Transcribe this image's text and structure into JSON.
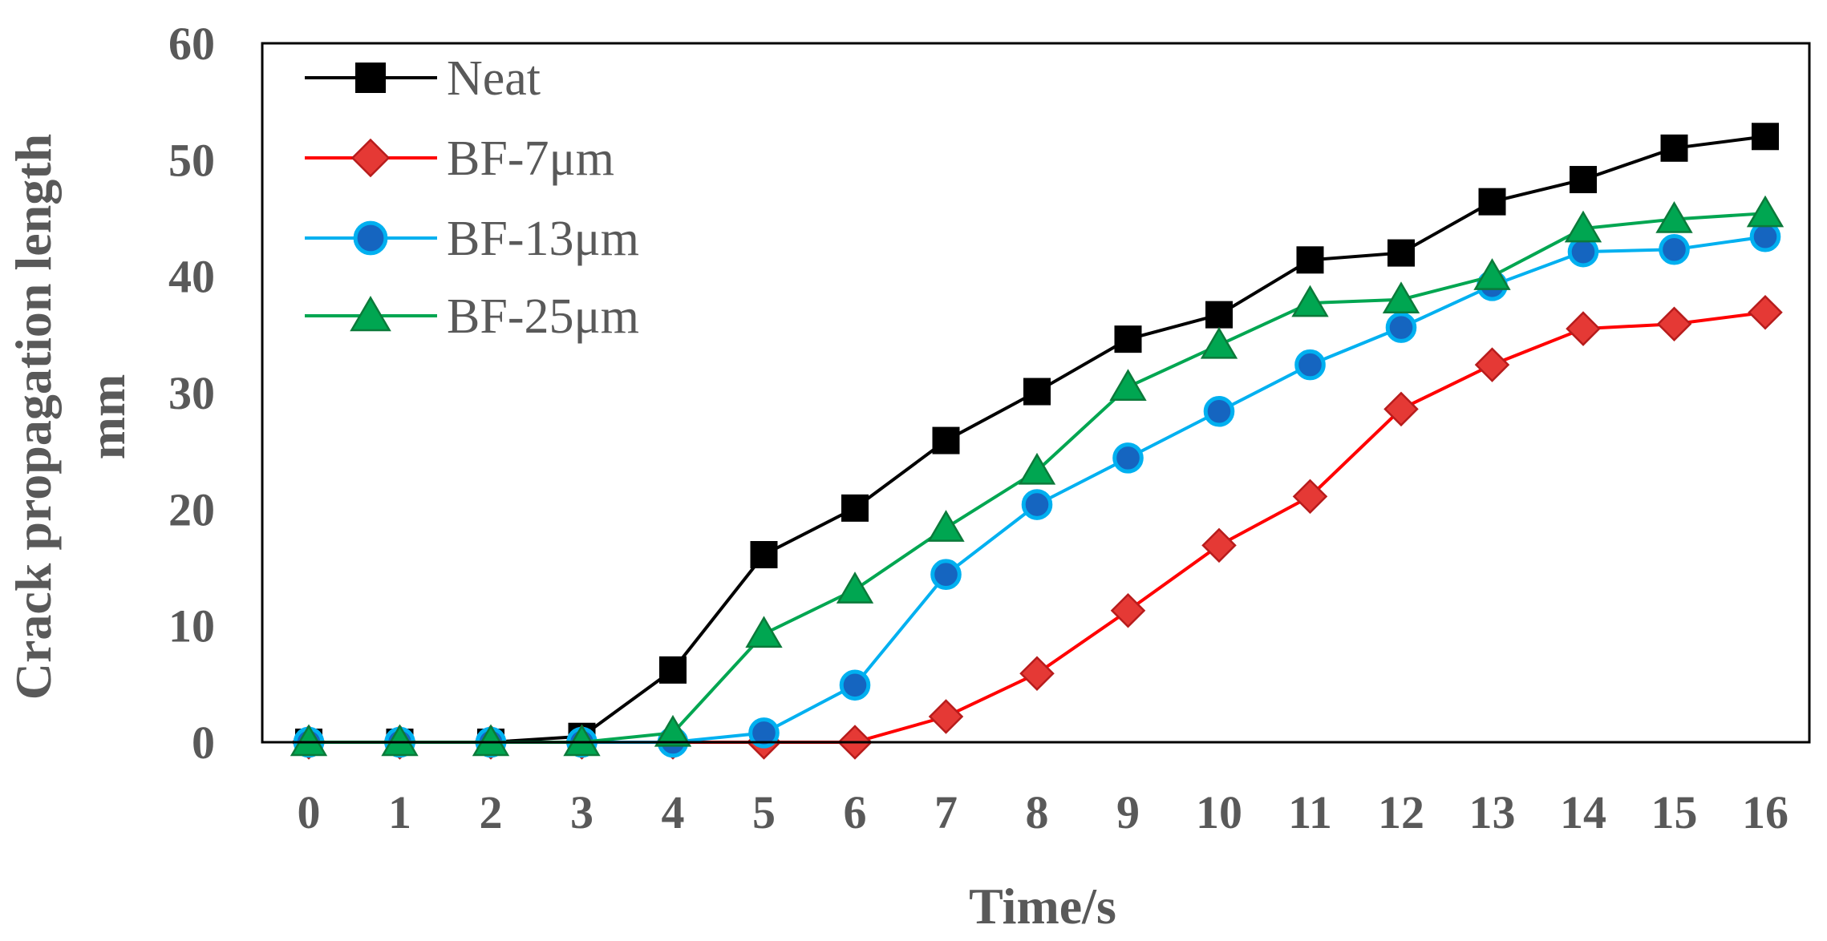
{
  "chart_data": {
    "type": "line",
    "xlabel": "Time/s",
    "ylabel_line1": "Crack propagation length",
    "ylabel_line2": "mm",
    "x": [
      0,
      1,
      2,
      3,
      4,
      5,
      6,
      7,
      8,
      9,
      10,
      11,
      12,
      13,
      14,
      15,
      16
    ],
    "xlim": [
      0,
      16
    ],
    "ylim": [
      0,
      60
    ],
    "yticks": [
      0,
      10,
      20,
      30,
      40,
      50,
      60
    ],
    "grid": false,
    "legend_position": "top-left",
    "series": [
      {
        "name": "Neat",
        "color": "#000000",
        "marker": "square",
        "values": [
          0,
          0,
          0,
          0.5,
          6.2,
          16.1,
          20.1,
          25.9,
          30.1,
          34.6,
          36.7,
          41.4,
          42.0,
          46.4,
          48.3,
          51.0,
          52.0
        ]
      },
      {
        "name": "BF-7μm",
        "color": "#FF0000",
        "marker": "diamond",
        "values": [
          0,
          0,
          0,
          0,
          0,
          0,
          0,
          2.2,
          5.9,
          11.3,
          16.9,
          21.1,
          28.6,
          32.4,
          35.5,
          35.9,
          36.9
        ]
      },
      {
        "name": "BF-13μm",
        "color": "#00B0F0",
        "marker": "circle",
        "values": [
          0,
          0,
          0,
          0,
          0,
          0.8,
          4.9,
          14.4,
          20.4,
          24.4,
          28.4,
          32.4,
          35.6,
          39.2,
          42.1,
          42.3,
          43.4
        ]
      },
      {
        "name": "BF-25μm",
        "color": "#00A651",
        "marker": "triangle",
        "values": [
          0,
          0,
          0,
          0,
          0.8,
          9.3,
          13.1,
          18.4,
          23.3,
          30.5,
          34.1,
          37.7,
          38.0,
          40.0,
          44.1,
          44.9,
          45.4
        ]
      }
    ]
  }
}
